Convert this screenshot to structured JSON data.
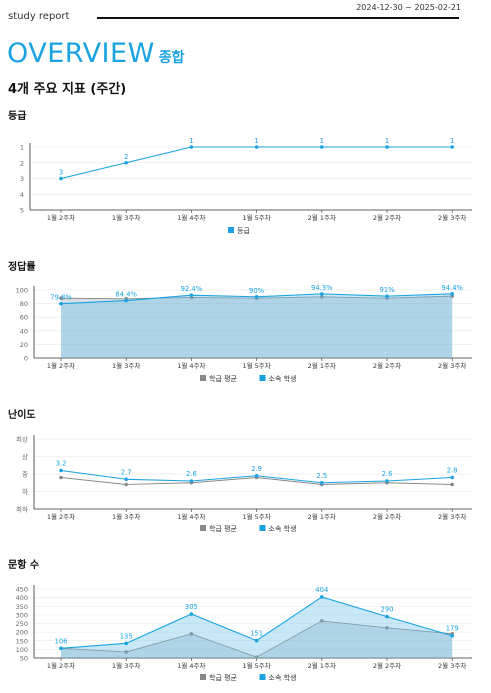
{
  "header": {
    "label": "study report",
    "date_range": "2024-12-30 ~ 2025-02-21"
  },
  "title": {
    "main": "OVERVIEW",
    "sub": "종합"
  },
  "subtitle": "4개 주요 지표 (주간)",
  "chart_data": [
    {
      "type": "line",
      "title": "등급",
      "categories": [
        "1월 2주차",
        "1월 3주차",
        "1월 4주차",
        "1월 5주차",
        "2월 1주차",
        "2월 2주차",
        "2월 3주차"
      ],
      "series": [
        {
          "name": "등급",
          "values": [
            3,
            2,
            1,
            1,
            1,
            1,
            1
          ],
          "color": "#1aa3e0"
        }
      ],
      "data_labels": [
        "3",
        "2",
        "1",
        "1",
        "1",
        "1",
        "1"
      ],
      "yticks": [
        "1",
        "2",
        "3",
        "4",
        "5"
      ],
      "ylim": [
        1,
        5
      ],
      "y_inverted": true,
      "legend": "bottom"
    },
    {
      "type": "area",
      "title": "정답률",
      "categories": [
        "1월 2주차",
        "1월 3주차",
        "1월 4주차",
        "1월 5주차",
        "2월 1주차",
        "2월 2주차",
        "2월 3주차"
      ],
      "series": [
        {
          "name": "학급 평균",
          "values": [
            88,
            87,
            89,
            88,
            90,
            88,
            91
          ],
          "color": "#888888"
        },
        {
          "name": "소속 학생",
          "values": [
            79.8,
            84.4,
            92.4,
            90,
            94.3,
            91,
            94.4
          ],
          "color": "#1aa3e0"
        }
      ],
      "data_labels": [
        "79.8%",
        "84.4%",
        "92.4%",
        "90%",
        "94.3%",
        "91%",
        "94.4%"
      ],
      "yticks": [
        "0",
        "20",
        "40",
        "60",
        "80",
        "100"
      ],
      "ylim": [
        0,
        100
      ],
      "legend": "bottom"
    },
    {
      "type": "line",
      "title": "난이도",
      "categories": [
        "1월 2주차",
        "1월 3주차",
        "1월 4주차",
        "1월 5주차",
        "2월 1주차",
        "2월 2주차",
        "2월 3주차"
      ],
      "series": [
        {
          "name": "학급 평균",
          "values": [
            2.8,
            2.4,
            2.5,
            2.8,
            2.4,
            2.5,
            2.4
          ],
          "color": "#888888"
        },
        {
          "name": "소속 학생",
          "values": [
            3.2,
            2.7,
            2.6,
            2.9,
            2.5,
            2.6,
            2.8
          ],
          "color": "#1aa3e0"
        }
      ],
      "data_labels": [
        "3.2",
        "2.7",
        "2.6",
        "2.9",
        "2.5",
        "2.6",
        "2.8"
      ],
      "yticks": [
        "최하",
        "하",
        "중",
        "상",
        "최상"
      ],
      "ylim": [
        1,
        5
      ],
      "legend": "bottom"
    },
    {
      "type": "area",
      "title": "문항 수",
      "categories": [
        "1월 2주차",
        "1월 3주차",
        "1월 4주차",
        "1월 5주차",
        "2월 1주차",
        "2월 2주차",
        "2월 3주차"
      ],
      "series": [
        {
          "name": "학급 평균",
          "values": [
            106,
            85,
            190,
            55,
            265,
            225,
            190
          ],
          "color": "#888888"
        },
        {
          "name": "소속 학생",
          "values": [
            106,
            135,
            305,
            151,
            404,
            290,
            179
          ],
          "color": "#1aa3e0"
        }
      ],
      "data_labels": [
        "106",
        "135",
        "305",
        "151",
        "404",
        "290",
        "179"
      ],
      "yticks": [
        "50",
        "100",
        "150",
        "200",
        "250",
        "300",
        "350",
        "400",
        "450"
      ],
      "ylim": [
        50,
        450
      ],
      "legend": "bottom"
    }
  ]
}
